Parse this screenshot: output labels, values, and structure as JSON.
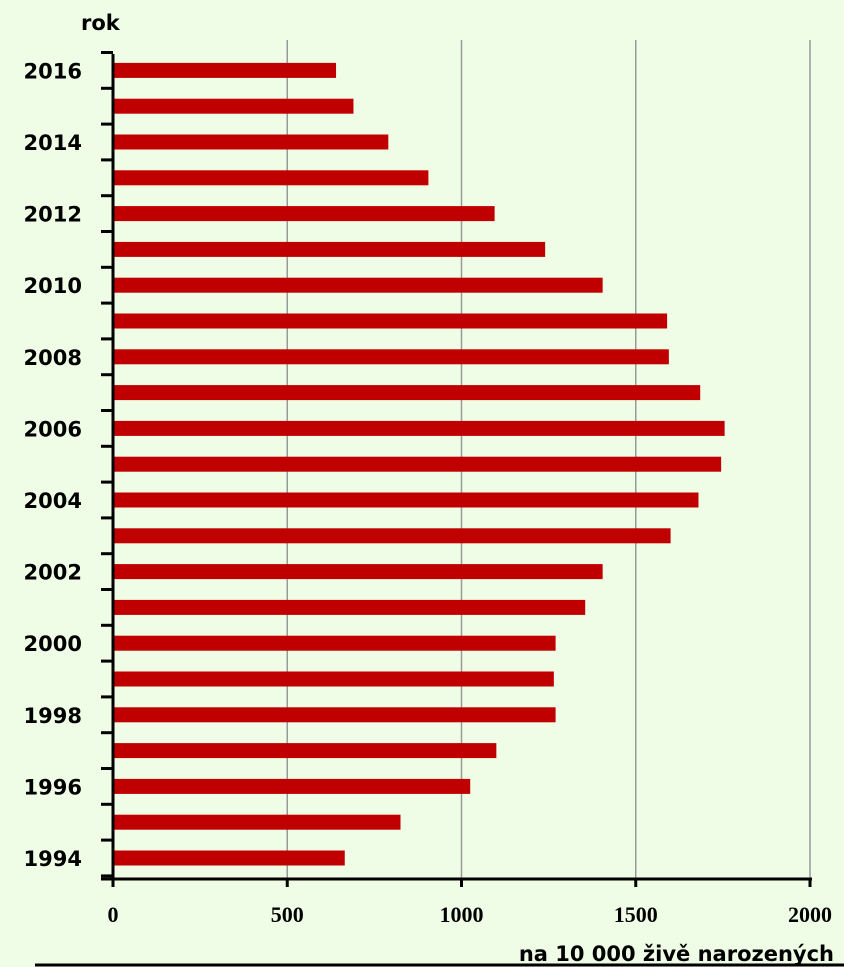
{
  "colors": {
    "background": "#f0fde6",
    "bar": "#c00000",
    "gridline": "#999999",
    "axis": "#000000"
  },
  "chart_data": {
    "type": "bar",
    "orientation": "horizontal",
    "title": "",
    "ylabel": "rok",
    "xlabel": "na 10 000 živě narozených",
    "xlim": [
      0,
      2000
    ],
    "x_ticks": [
      "0",
      "500",
      "1000",
      "1500",
      "2000"
    ],
    "x_tick_values": [
      0,
      500,
      1000,
      1500,
      2000
    ],
    "grid": "vertical",
    "legend": "none",
    "categories": [
      "1994",
      "1995",
      "1996",
      "1997",
      "1998",
      "1999",
      "2000",
      "2001",
      "2002",
      "2003",
      "2004",
      "2005",
      "2006",
      "2007",
      "2008",
      "2009",
      "2010",
      "2011",
      "2012",
      "2013",
      "2014",
      "2015",
      "2016"
    ],
    "category_labels": [
      "1994",
      "",
      "1996",
      "",
      "1998",
      "",
      "2000",
      "",
      "2002",
      "",
      "2004",
      "",
      "2006",
      "",
      "2008",
      "",
      "2010",
      "",
      "2012",
      "",
      "2014",
      "",
      "2016"
    ],
    "values": [
      665,
      825,
      1025,
      1100,
      1270,
      1265,
      1270,
      1355,
      1405,
      1600,
      1680,
      1745,
      1755,
      1685,
      1595,
      1590,
      1405,
      1240,
      1095,
      905,
      790,
      690,
      640
    ]
  }
}
